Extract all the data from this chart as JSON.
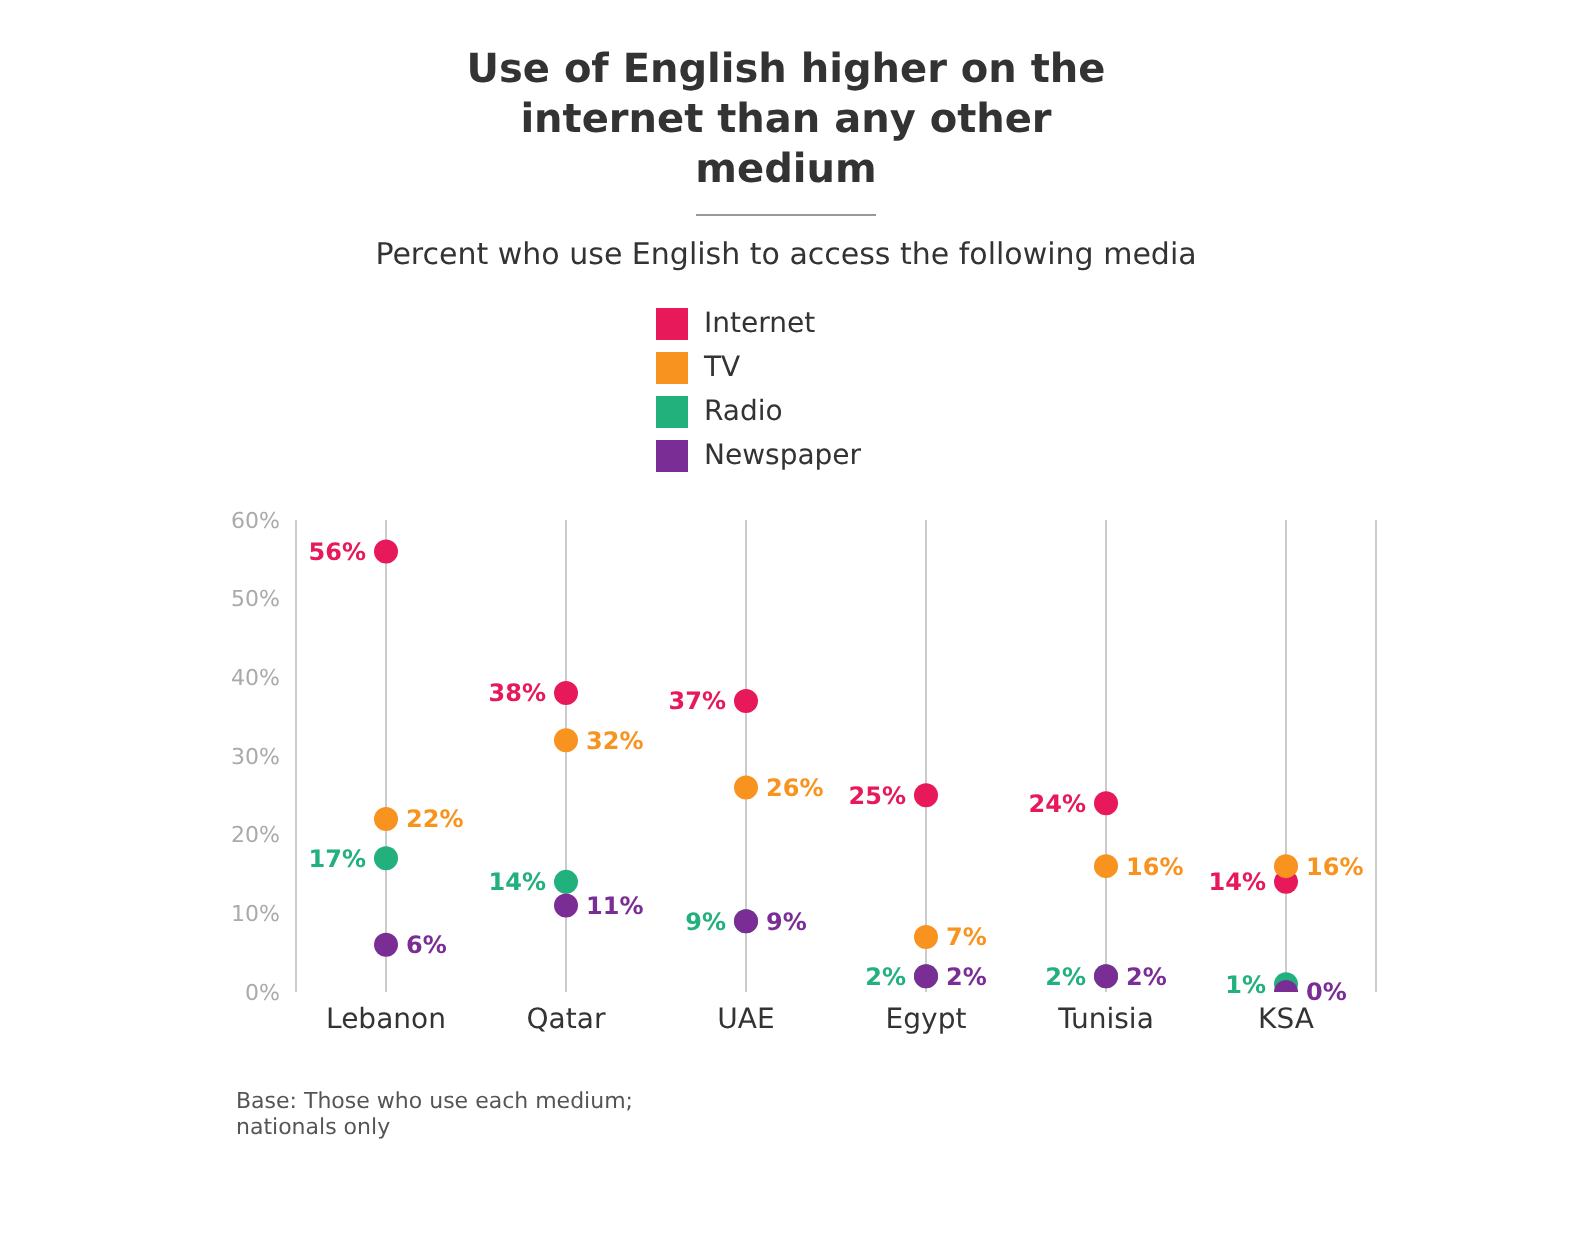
{
  "chart_data": {
    "type": "scatter",
    "title": "Use of English higher on the internet than any other medium",
    "subtitle": "Percent who use English to access the following media",
    "categories": [
      "Lebanon",
      "Qatar",
      "UAE",
      "Egypt",
      "Tunisia",
      "KSA"
    ],
    "series": [
      {
        "name": "Internet",
        "color": "#e8195a",
        "values": [
          56,
          38,
          37,
          25,
          24,
          14
        ],
        "value_labels": [
          "56%",
          "38%",
          "37%",
          "25%",
          "24%",
          "14%"
        ]
      },
      {
        "name": "TV",
        "color": "#f7931e",
        "values": [
          22,
          32,
          26,
          7,
          16,
          16
        ],
        "value_labels": [
          "22%",
          "32%",
          "26%",
          "7%",
          "16%",
          "16%"
        ]
      },
      {
        "name": "Radio",
        "color": "#22b07d",
        "values": [
          17,
          14,
          9,
          2,
          2,
          1
        ],
        "value_labels": [
          "17%",
          "14%",
          "9%",
          "2%",
          "2%",
          "1%"
        ]
      },
      {
        "name": "Newspaper",
        "color": "#7b2d96",
        "values": [
          6,
          11,
          9,
          2,
          2,
          0
        ],
        "value_labels": [
          "6%",
          "11%",
          "9%",
          "2%",
          "2%",
          "0%"
        ]
      }
    ],
    "ylim": [
      0,
      60
    ],
    "yticks": [
      {
        "value": 0,
        "label": "0%"
      },
      {
        "value": 10,
        "label": "10%"
      },
      {
        "value": 20,
        "label": "20%"
      },
      {
        "value": 30,
        "label": "30%"
      },
      {
        "value": 40,
        "label": "40%"
      },
      {
        "value": 50,
        "label": "50%"
      },
      {
        "value": 60,
        "label": "60%"
      }
    ],
    "grid": "x",
    "legend": "top",
    "marker": "circle",
    "annotations": [
      "Base: Those who use each medium; nationals only"
    ]
  }
}
